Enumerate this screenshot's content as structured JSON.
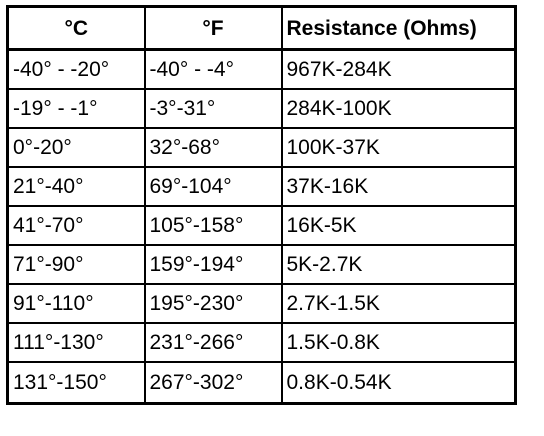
{
  "table": {
    "headers": [
      "°C",
      "°F",
      "Resistance (Ohms)"
    ],
    "rows": [
      [
        "-40° - -20°",
        "-40° - -4°",
        "967K-284K"
      ],
      [
        "-19° - -1°",
        "-3°-31°",
        "284K-100K"
      ],
      [
        "0°-20°",
        "32°-68°",
        "100K-37K"
      ],
      [
        "21°-40°",
        "69°-104°",
        "37K-16K"
      ],
      [
        "41°-70°",
        "105°-158°",
        "16K-5K"
      ],
      [
        "71°-90°",
        "159°-194°",
        "5K-2.7K"
      ],
      [
        "91°-110°",
        "195°-230°",
        "2.7K-1.5K"
      ],
      [
        "111°-130°",
        "231°-266°",
        "1.5K-0.8K"
      ],
      [
        "131°-150°",
        "267°-302°",
        "0.8K-0.54K"
      ]
    ]
  }
}
